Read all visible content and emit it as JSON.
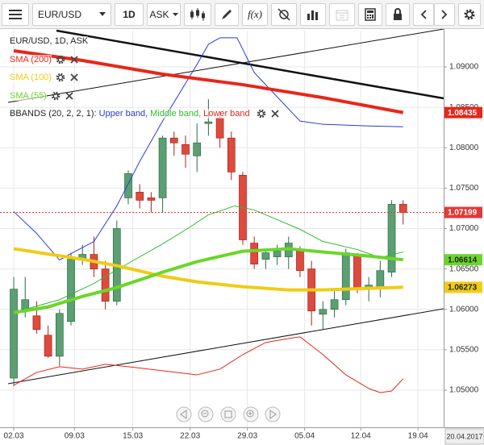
{
  "toolbar": {
    "symbol": "EUR/USD",
    "timeframe": "1D",
    "price_type": "ASK",
    "indicators": "f(x)"
  },
  "chart_data": {
    "type": "candlestick",
    "title": "EUR/USD, 1D, ASK",
    "x": [
      0,
      1,
      2,
      3,
      4,
      5,
      6,
      7,
      8,
      9,
      10,
      11,
      12,
      13,
      14,
      15,
      16,
      17,
      18,
      19,
      20,
      21,
      22,
      23,
      24,
      25,
      26,
      27,
      28,
      29,
      30,
      31,
      32,
      33,
      34
    ],
    "open": [
      1.0515,
      1.06,
      1.0592,
      1.0568,
      1.0542,
      1.0585,
      1.0662,
      1.0668,
      1.065,
      1.061,
      1.0738,
      1.0745,
      1.0738,
      1.0738,
      1.0812,
      1.0804,
      1.079,
      1.083,
      1.0837,
      1.0812,
      1.0766,
      1.0682,
      1.0662,
      1.0665,
      1.0665,
      1.0672,
      1.065,
      1.0594,
      1.06,
      1.0612,
      1.0666,
      1.0626,
      1.0626,
      1.0646,
      1.073
    ],
    "high": [
      1.064,
      1.064,
      1.061,
      1.058,
      1.06,
      1.067,
      1.068,
      1.069,
      1.066,
      1.071,
      1.0772,
      1.0755,
      1.0745,
      1.0815,
      1.082,
      1.0815,
      1.083,
      1.086,
      1.0845,
      1.082,
      1.077,
      1.069,
      1.0675,
      1.068,
      1.069,
      1.0678,
      1.066,
      1.061,
      1.0625,
      1.0675,
      1.067,
      1.064,
      1.066,
      1.0735,
      1.0735
    ],
    "low": [
      1.0505,
      1.059,
      1.057,
      1.054,
      1.053,
      1.058,
      1.0655,
      1.064,
      1.06,
      1.0605,
      1.073,
      1.0725,
      1.072,
      1.072,
      1.079,
      1.0775,
      1.077,
      1.0815,
      1.08,
      1.076,
      1.068,
      1.065,
      1.065,
      1.0655,
      1.065,
      1.064,
      1.058,
      1.0575,
      1.059,
      1.0605,
      1.062,
      1.061,
      1.0615,
      1.064,
      1.0705
    ],
    "close": [
      1.0625,
      1.0612,
      1.0575,
      1.0542,
      1.0595,
      1.0662,
      1.0668,
      1.065,
      1.061,
      1.07,
      1.0768,
      1.0735,
      1.0735,
      1.0812,
      1.0806,
      1.0792,
      1.0806,
      1.0832,
      1.0812,
      1.077,
      1.0686,
      1.0656,
      1.067,
      1.0672,
      1.0682,
      1.0648,
      1.0598,
      1.06,
      1.0612,
      1.067,
      1.0626,
      1.063,
      1.0648,
      1.073,
      1.07199
    ],
    "up_color": "#5b9f72",
    "down_color": "#df4a3c",
    "price_line_color": "#e53935",
    "xlim": [
      -1.2,
      37.54
    ],
    "xticks": [
      {
        "value": 0,
        "label": "02.03"
      },
      {
        "value": 5.3,
        "label": "09.03"
      },
      {
        "value": 10.4,
        "label": "15.03"
      },
      {
        "value": 15.4,
        "label": "22.03"
      },
      {
        "value": 20.4,
        "label": "29.03"
      },
      {
        "value": 25.4,
        "label": "05.04"
      },
      {
        "value": 30.3,
        "label": "12.04"
      },
      {
        "value": 35.3,
        "label": "19.04"
      }
    ],
    "current_date_label": "20.04.2017",
    "ylim": [
      1.04541,
      1.09449
    ],
    "yticks": [
      {
        "value": 1.09,
        "label": "1.09000"
      },
      {
        "value": 1.085,
        "label": "1.08500"
      },
      {
        "value": 1.08,
        "label": "1.08000"
      },
      {
        "value": 1.075,
        "label": "1.07500"
      },
      {
        "value": 1.07,
        "label": "1.07000"
      },
      {
        "value": 1.065,
        "label": "1.06500"
      },
      {
        "value": 1.06,
        "label": "1.06000"
      },
      {
        "value": 1.055,
        "label": "1.05500"
      },
      {
        "value": 1.05,
        "label": "1.05000"
      }
    ],
    "grid": true,
    "series": [
      {
        "name": "SMA (200)",
        "color": "#e8261a",
        "width": 4,
        "tag": true,
        "x": [
          0,
          6,
          13,
          20,
          27,
          34
        ],
        "values": [
          1.092,
          1.0908,
          1.0891,
          1.0878,
          1.0862,
          1.08435
        ]
      },
      {
        "name": "SMA (100)",
        "color": "#f0cc14",
        "width": 4,
        "tag": true,
        "x": [
          0,
          6,
          9,
          13,
          16,
          20,
          24,
          27,
          31,
          34
        ],
        "values": [
          1.0675,
          1.0662,
          1.0654,
          1.0641,
          1.0634,
          1.0628,
          1.0624,
          1.0624,
          1.0626,
          1.06273
        ]
      },
      {
        "name": "SMA (55)",
        "color": "#6bd62a",
        "width": 4,
        "tag": true,
        "x": [
          0,
          3,
          6,
          9,
          13,
          16,
          20,
          24,
          27,
          31,
          34
        ],
        "values": [
          1.0596,
          1.0603,
          1.0616,
          1.0627,
          1.0646,
          1.0659,
          1.0672,
          1.0675,
          1.0671,
          1.0666,
          1.06614
        ]
      }
    ],
    "bbands": {
      "label": "BBANDS (20, 2, 2, 1):",
      "series": [
        {
          "name": "Upper band,",
          "color": "#2a3bd6",
          "width": 1,
          "x": [
            0,
            2,
            4,
            5,
            7,
            9,
            11,
            13,
            16,
            17,
            18,
            19.5,
            21,
            23,
            25,
            27,
            31,
            34
          ],
          "values": [
            1.0721,
            1.0694,
            1.0661,
            1.0669,
            1.0684,
            1.0728,
            1.0783,
            1.0833,
            1.0903,
            1.0928,
            1.0936,
            1.0936,
            1.0893,
            1.0863,
            1.0833,
            1.0829,
            1.0827,
            1.0826
          ]
        },
        {
          "name": "Middle band,",
          "color": "#2dbb2d",
          "width": 1,
          "x": [
            0,
            4,
            7,
            9,
            13,
            15.4,
            17,
            19.3,
            21,
            23,
            25,
            27,
            30,
            32,
            34
          ],
          "values": [
            1.0596,
            1.0612,
            1.0632,
            1.0649,
            1.0681,
            1.0702,
            1.0717,
            1.0728,
            1.0723,
            1.0711,
            1.0699,
            1.0684,
            1.0674,
            1.0664,
            1.0671
          ]
        },
        {
          "name": "Lower band",
          "color": "#e8261a",
          "width": 1,
          "x": [
            0,
            2,
            4,
            6,
            8,
            10,
            13,
            16,
            18,
            20,
            22,
            24,
            25,
            27,
            29,
            31,
            32,
            33,
            34
          ],
          "values": [
            1.0506,
            1.0522,
            1.0529,
            1.0526,
            1.0532,
            1.0529,
            1.0524,
            1.0519,
            1.0526,
            1.0544,
            1.0559,
            1.0564,
            1.0566,
            1.0544,
            1.0519,
            1.0502,
            1.0497,
            1.0499,
            1.0514
          ]
        }
      ]
    }
  }
}
